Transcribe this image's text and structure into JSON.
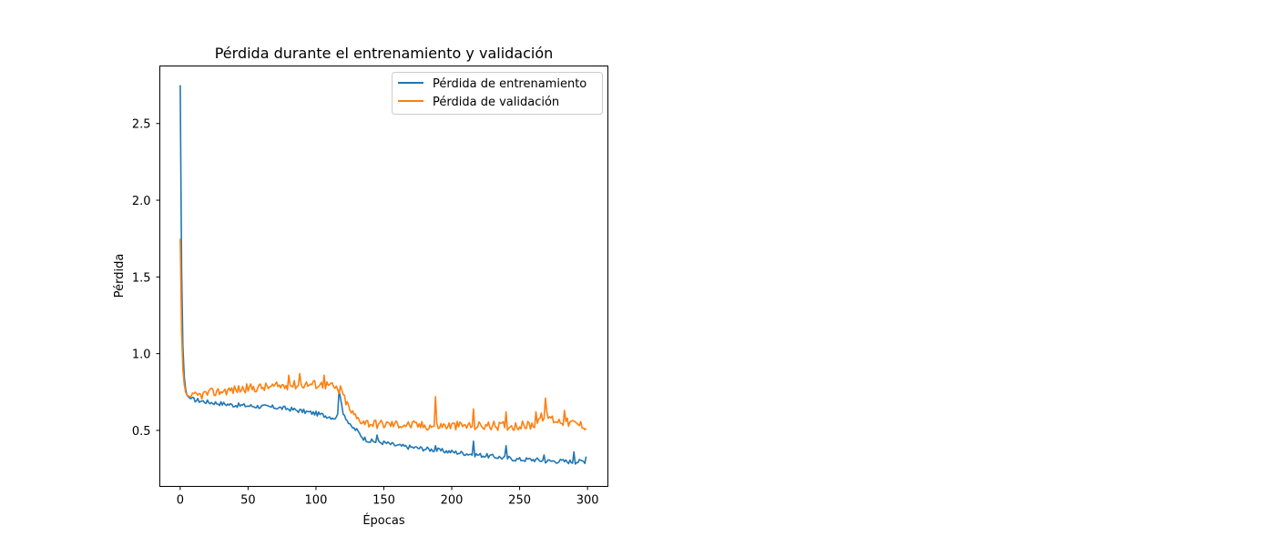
{
  "chart_data": {
    "type": "line",
    "title": "Pérdida durante el entrenamiento y validación",
    "xlabel": "Épocas",
    "ylabel": "Pérdida",
    "xlim": [
      -15,
      315
    ],
    "ylim": [
      0.135,
      2.875
    ],
    "xticks": [
      0,
      50,
      100,
      150,
      200,
      250,
      300
    ],
    "yticks": [
      0.5,
      1.0,
      1.5,
      2.0,
      2.5
    ],
    "xtick_labels": [
      "0",
      "50",
      "100",
      "150",
      "200",
      "250",
      "300"
    ],
    "ytick_labels": [
      "0.5",
      "1.0",
      "1.5",
      "2.0",
      "2.5"
    ],
    "grid": false,
    "legend_position": "top-right",
    "series": [
      {
        "name": "Pérdida de entrenamiento",
        "color": "#1f77b4",
        "anchors": [
          [
            0,
            2.75
          ],
          [
            1,
            1.55
          ],
          [
            2,
            1.05
          ],
          [
            3,
            0.85
          ],
          [
            4,
            0.77
          ],
          [
            5,
            0.73
          ],
          [
            7,
            0.71
          ],
          [
            10,
            0.7
          ],
          [
            20,
            0.685
          ],
          [
            30,
            0.675
          ],
          [
            40,
            0.665
          ],
          [
            50,
            0.66
          ],
          [
            60,
            0.655
          ],
          [
            70,
            0.65
          ],
          [
            80,
            0.64
          ],
          [
            90,
            0.625
          ],
          [
            100,
            0.61
          ],
          [
            110,
            0.59
          ],
          [
            115,
            0.58
          ],
          [
            118,
            0.7
          ],
          [
            120,
            0.62
          ],
          [
            125,
            0.53
          ],
          [
            130,
            0.5
          ],
          [
            135,
            0.45
          ],
          [
            140,
            0.43
          ],
          [
            150,
            0.42
          ],
          [
            160,
            0.4
          ],
          [
            170,
            0.39
          ],
          [
            180,
            0.38
          ],
          [
            190,
            0.37
          ],
          [
            200,
            0.36
          ],
          [
            210,
            0.35
          ],
          [
            220,
            0.34
          ],
          [
            230,
            0.33
          ],
          [
            240,
            0.32
          ],
          [
            250,
            0.31
          ],
          [
            260,
            0.31
          ],
          [
            270,
            0.3
          ],
          [
            280,
            0.3
          ],
          [
            290,
            0.295
          ],
          [
            299,
            0.3
          ]
        ],
        "spikes": [
          [
            117,
            0.76
          ],
          [
            145,
            0.47
          ],
          [
            188,
            0.4
          ],
          [
            216,
            0.43
          ],
          [
            240,
            0.4
          ],
          [
            268,
            0.34
          ],
          [
            290,
            0.36
          ],
          [
            299,
            0.33
          ]
        ],
        "noise": 0.015
      },
      {
        "name": "Pérdida de validación",
        "color": "#ff7f0e",
        "anchors": [
          [
            0,
            1.75
          ],
          [
            1,
            1.15
          ],
          [
            2,
            0.9
          ],
          [
            3,
            0.8
          ],
          [
            4,
            0.75
          ],
          [
            5,
            0.73
          ],
          [
            7,
            0.72
          ],
          [
            10,
            0.72
          ],
          [
            20,
            0.74
          ],
          [
            30,
            0.755
          ],
          [
            40,
            0.765
          ],
          [
            50,
            0.775
          ],
          [
            60,
            0.78
          ],
          [
            70,
            0.785
          ],
          [
            80,
            0.795
          ],
          [
            90,
            0.8
          ],
          [
            100,
            0.8
          ],
          [
            110,
            0.795
          ],
          [
            115,
            0.77
          ],
          [
            120,
            0.73
          ],
          [
            125,
            0.63
          ],
          [
            130,
            0.58
          ],
          [
            135,
            0.56
          ],
          [
            140,
            0.545
          ],
          [
            150,
            0.54
          ],
          [
            160,
            0.54
          ],
          [
            170,
            0.535
          ],
          [
            180,
            0.53
          ],
          [
            190,
            0.53
          ],
          [
            200,
            0.53
          ],
          [
            210,
            0.53
          ],
          [
            220,
            0.53
          ],
          [
            230,
            0.53
          ],
          [
            240,
            0.53
          ],
          [
            250,
            0.53
          ],
          [
            260,
            0.535
          ],
          [
            265,
            0.58
          ],
          [
            270,
            0.6
          ],
          [
            275,
            0.57
          ],
          [
            280,
            0.56
          ],
          [
            290,
            0.545
          ],
          [
            299,
            0.53
          ]
        ],
        "spikes": [
          [
            80,
            0.86
          ],
          [
            88,
            0.87
          ],
          [
            106,
            0.86
          ],
          [
            118,
            0.79
          ],
          [
            188,
            0.72
          ],
          [
            216,
            0.64
          ],
          [
            240,
            0.62
          ],
          [
            262,
            0.62
          ],
          [
            269,
            0.71
          ],
          [
            283,
            0.63
          ]
        ],
        "noise": 0.03
      }
    ]
  }
}
